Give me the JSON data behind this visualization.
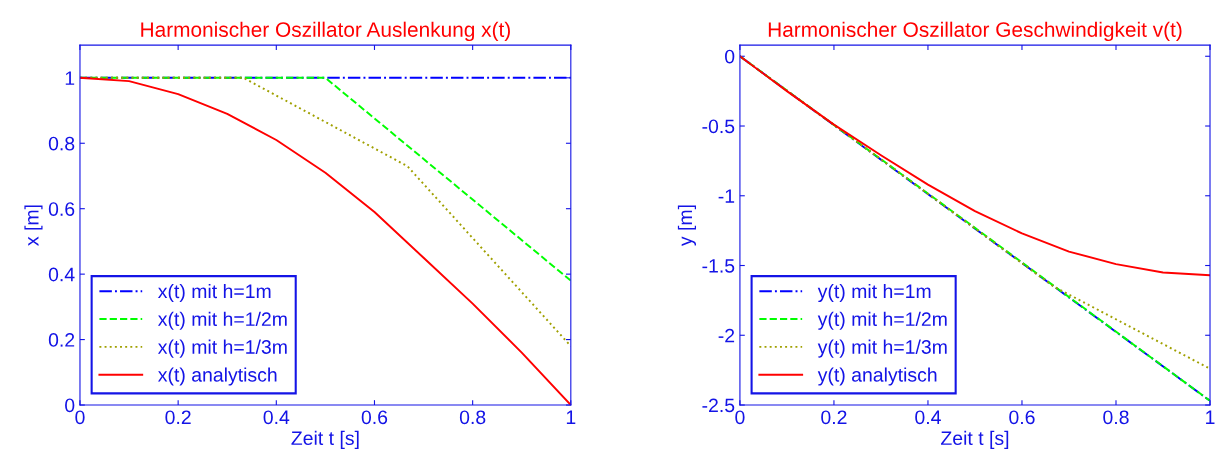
{
  "chart_data": [
    {
      "type": "line",
      "title": "Harmonischer Oszillator Auslenkung x(t)",
      "xlabel": "Zeit t [s]",
      "ylabel": "x [m]",
      "xlim": [
        0,
        1
      ],
      "ylim": [
        0,
        1.1
      ],
      "xticks": [
        0,
        0.2,
        0.4,
        0.6,
        0.8,
        1
      ],
      "yticks": [
        0,
        0.2,
        0.4,
        0.6,
        0.8,
        1
      ],
      "grid": false,
      "legend": "bottom left",
      "marker": "none",
      "series": [
        {
          "name": "x(t) mit h=1m",
          "color": "#0000ff",
          "line_style": "dashdot",
          "x": [
            0,
            1
          ],
          "values": [
            1,
            1
          ]
        },
        {
          "name": "x(t) mit h=1/2m",
          "color": "#00ff00",
          "line_style": "dashed",
          "x": [
            0,
            0.5,
            1
          ],
          "values": [
            1,
            1,
            0.38
          ]
        },
        {
          "name": "x(t) mit h=1/3m",
          "color": "#a0a000",
          "line_style": "dotted",
          "x": [
            0,
            0.333,
            0.667,
            1
          ],
          "values": [
            1,
            1,
            0.73,
            0.18
          ]
        },
        {
          "name": "x(t) analytisch",
          "color": "#ff0000",
          "line_style": "solid",
          "x": [
            0,
            0.1,
            0.2,
            0.3,
            0.4,
            0.5,
            0.6,
            0.7,
            0.8,
            0.9,
            1
          ],
          "values": [
            1,
            0.99,
            0.95,
            0.89,
            0.81,
            0.71,
            0.59,
            0.45,
            0.31,
            0.16,
            0
          ]
        }
      ]
    },
    {
      "type": "line",
      "title": "Harmonischer Oszillator Geschwindigkeit v(t)",
      "xlabel": "Zeit t [s]",
      "ylabel": "y [m]",
      "xlim": [
        0,
        1
      ],
      "ylim": [
        -2.5,
        0.08
      ],
      "xticks": [
        0,
        0.2,
        0.4,
        0.6,
        0.8,
        1
      ],
      "yticks": [
        {
          "value": -2.5,
          "label": "-2.5"
        },
        {
          "value": -2,
          "label": "-2"
        },
        {
          "value": -1.5,
          "label": "-1.5"
        },
        {
          "value": -1,
          "label": "-1"
        },
        {
          "value": -0.5,
          "label": "-0.5"
        },
        0
      ],
      "grid": false,
      "legend": "bottom left",
      "marker": "none",
      "series": [
        {
          "name": "y(t) mit h=1m",
          "color": "#0000ff",
          "line_style": "dashdot",
          "x": [
            0,
            1
          ],
          "values": [
            0,
            -2.47
          ]
        },
        {
          "name": "y(t) mit h=1/2m",
          "color": "#00ff00",
          "line_style": "dashed",
          "x": [
            0,
            0.5,
            1
          ],
          "values": [
            0,
            -1.23,
            -2.47
          ]
        },
        {
          "name": "y(t) mit h=1/3m",
          "color": "#a0a000",
          "line_style": "dotted",
          "x": [
            0,
            0.333,
            0.667,
            1
          ],
          "values": [
            0,
            -0.82,
            -1.65,
            -2.24
          ]
        },
        {
          "name": "y(t) analytisch",
          "color": "#ff0000",
          "line_style": "solid",
          "x": [
            0,
            0.1,
            0.2,
            0.3,
            0.4,
            0.5,
            0.6,
            0.7,
            0.8,
            0.9,
            1
          ],
          "values": [
            0,
            -0.25,
            -0.49,
            -0.71,
            -0.92,
            -1.11,
            -1.27,
            -1.4,
            -1.49,
            -1.55,
            -1.57
          ]
        }
      ]
    }
  ]
}
